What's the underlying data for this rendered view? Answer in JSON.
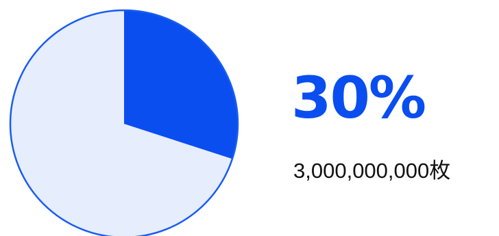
{
  "chart_data": {
    "type": "pie",
    "slices": [
      {
        "label": "",
        "value": 30,
        "color": "#0a4ef0"
      },
      {
        "label": "",
        "value": 70,
        "color": "#e6edfd"
      }
    ],
    "outline_color": "#1a5cf2",
    "start_angle": "12 o'clock",
    "direction": "clockwise"
  },
  "summary": {
    "percent_label": "30%",
    "count_label": "3,000,000,000枚"
  }
}
